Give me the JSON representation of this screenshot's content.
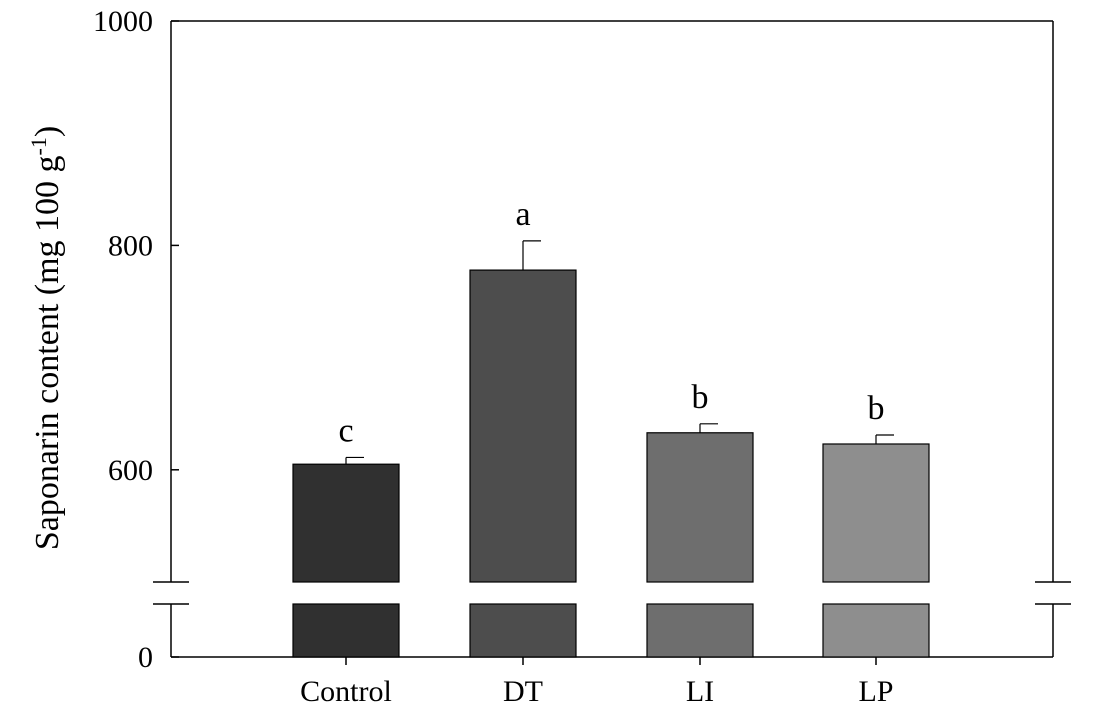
{
  "chart_data": {
    "type": "bar",
    "categories": [
      "Control",
      "DT",
      "LI",
      "LP"
    ],
    "values": [
      605,
      778,
      633,
      623
    ],
    "errors": [
      6,
      26,
      8,
      8
    ],
    "significance": [
      "c",
      "a",
      "b",
      "b"
    ],
    "colors": [
      "#303030",
      "#4d4d4d",
      "#6e6e6e",
      "#8e8e8e"
    ],
    "ylabel_main": "Saponarin content (mg 100 g",
    "ylabel_sup": "-1",
    "ylabel_close": ")",
    "ylim": [
      0,
      1000
    ],
    "axis_break": [
      0,
      500
    ],
    "yticks": [
      "0",
      "600",
      "800",
      "1000"
    ],
    "grid": false
  }
}
